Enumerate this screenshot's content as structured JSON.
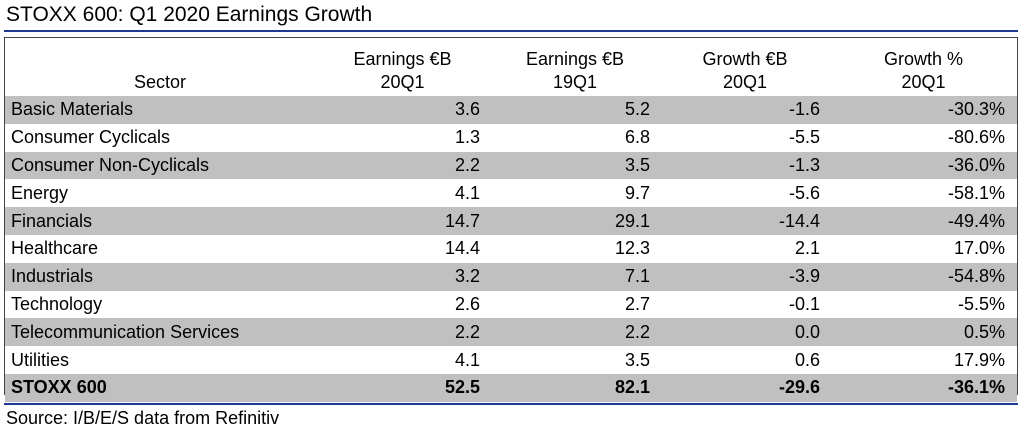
{
  "title": "STOXX 600: Q1 2020 Earnings Growth",
  "headers": {
    "sector": "Sector",
    "earnings_20q1_l1": "Earnings €B",
    "earnings_20q1_l2": "20Q1",
    "earnings_19q1_l1": "Earnings €B",
    "earnings_19q1_l2": "19Q1",
    "growth_eur_l1": "Growth €B",
    "growth_eur_l2": "20Q1",
    "growth_pct_l1": "Growth %",
    "growth_pct_l2": "20Q1"
  },
  "rows": [
    {
      "sector": "Basic Materials",
      "e20": "3.6",
      "e19": "5.2",
      "g_eur": "-1.6",
      "g_pct": "-30.3%"
    },
    {
      "sector": "Consumer Cyclicals",
      "e20": "1.3",
      "e19": "6.8",
      "g_eur": "-5.5",
      "g_pct": "-80.6%"
    },
    {
      "sector": "Consumer Non-Cyclicals",
      "e20": "2.2",
      "e19": "3.5",
      "g_eur": "-1.3",
      "g_pct": "-36.0%"
    },
    {
      "sector": "Energy",
      "e20": "4.1",
      "e19": "9.7",
      "g_eur": "-5.6",
      "g_pct": "-58.1%"
    },
    {
      "sector": "Financials",
      "e20": "14.7",
      "e19": "29.1",
      "g_eur": "-14.4",
      "g_pct": "-49.4%"
    },
    {
      "sector": "Healthcare",
      "e20": "14.4",
      "e19": "12.3",
      "g_eur": "2.1",
      "g_pct": "17.0%"
    },
    {
      "sector": "Industrials",
      "e20": "3.2",
      "e19": "7.1",
      "g_eur": "-3.9",
      "g_pct": "-54.8%"
    },
    {
      "sector": "Technology",
      "e20": "2.6",
      "e19": "2.7",
      "g_eur": "-0.1",
      "g_pct": "-5.5%"
    },
    {
      "sector": "Telecommunication Services",
      "e20": "2.2",
      "e19": "2.2",
      "g_eur": "0.0",
      "g_pct": "0.5%"
    },
    {
      "sector": "Utilities",
      "e20": "4.1",
      "e19": "3.5",
      "g_eur": "0.6",
      "g_pct": "17.9%"
    }
  ],
  "total": {
    "sector": "STOXX 600",
    "e20": "52.5",
    "e19": "82.1",
    "g_eur": "-29.6",
    "g_pct": "-36.1%"
  },
  "source": "Source: I/B/E/S data from Refinitiv",
  "colors": {
    "shade": "#c0c0c0",
    "rule": "#1f3a93"
  }
}
